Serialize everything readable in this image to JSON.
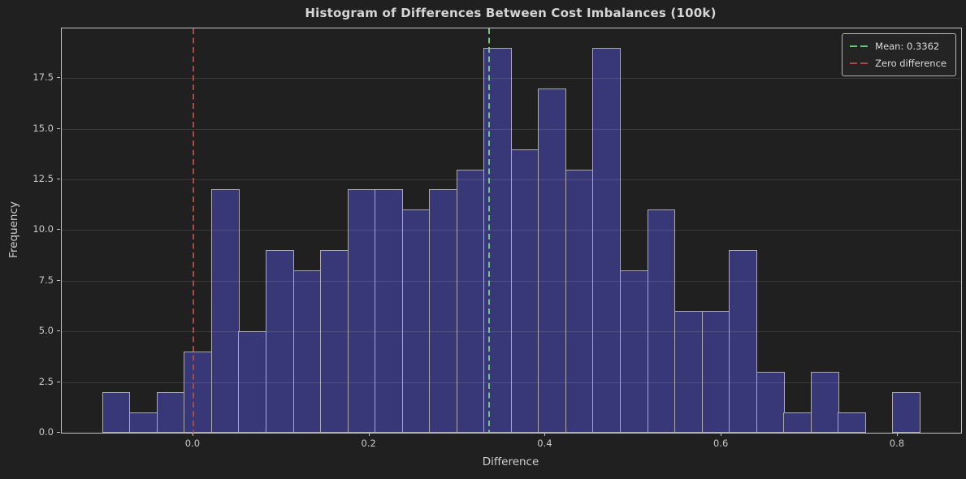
{
  "chart_data": {
    "type": "bar",
    "subtype": "histogram",
    "title": "Histogram of Differences Between Cost Imbalances (100k)",
    "xlabel": "Difference",
    "ylabel": "Frequency",
    "bin_start": -0.103,
    "bin_width": 0.030951,
    "frequencies": [
      2,
      1,
      2,
      4,
      12,
      5,
      9,
      8,
      9,
      12,
      12,
      11,
      12,
      13,
      19,
      14,
      17,
      13,
      19,
      8,
      11,
      6,
      6,
      9,
      3,
      1,
      3,
      1,
      0,
      2
    ],
    "xlim": [
      -0.1494,
      0.872
    ],
    "ylim": [
      0,
      19.95
    ],
    "x_ticks": [
      0.0,
      0.2,
      0.4,
      0.6,
      0.8
    ],
    "x_tick_labels": [
      "0.0",
      "0.2",
      "0.4",
      "0.6",
      "0.8"
    ],
    "y_ticks": [
      0.0,
      2.5,
      5.0,
      7.5,
      10.0,
      12.5,
      15.0,
      17.5
    ],
    "y_tick_labels": [
      "0.0",
      "2.5",
      "5.0",
      "7.5",
      "10.0",
      "12.5",
      "15.0",
      "17.5"
    ],
    "grid": "y",
    "legend_position": "upper right",
    "vlines": [
      {
        "value": 0.3362,
        "label": "Mean: 0.3362",
        "color": "#6ec480",
        "style": "dashed"
      },
      {
        "value": 0.0,
        "label": "Zero difference",
        "color": "#a84a46",
        "style": "dashed"
      }
    ],
    "colors": {
      "background": "#202020",
      "bar_fill": "#383878",
      "bar_edge": "#a9a9ae",
      "spine": "#c4c4c4",
      "grid": "#3a3a3a",
      "text": "#d6d6d6"
    }
  }
}
